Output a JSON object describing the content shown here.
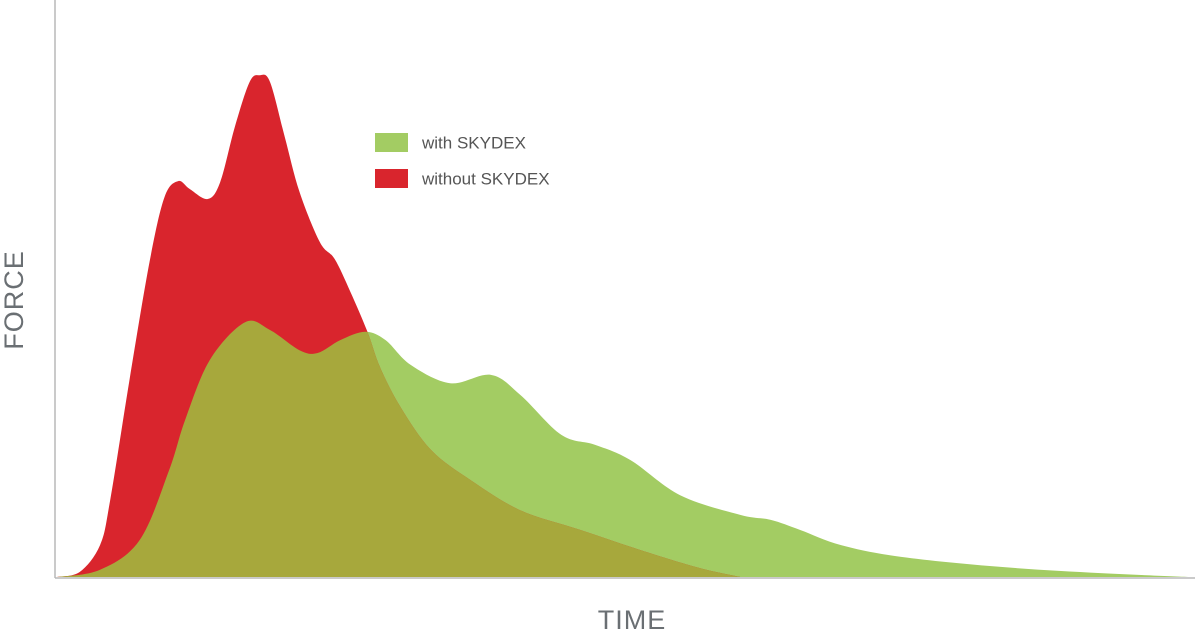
{
  "chart_data": {
    "type": "area",
    "x_label": "TIME",
    "y_label": "FORCE",
    "xlim": [
      0,
      100
    ],
    "ylim": [
      0,
      100
    ],
    "overlap_color": "#a7a83c",
    "series": [
      {
        "name": "with SKYDEX",
        "color": "#a3cc63",
        "x": [
          0,
          3.8,
          7.3,
          9.9,
          11.3,
          13.5,
          16.6,
          18.8,
          21.4,
          23.0,
          25.0,
          27.2,
          29.0,
          31.2,
          34.7,
          38.3,
          40.9,
          44.5,
          47.5,
          50.6,
          55.0,
          60.3,
          63.0,
          65.6,
          69.2,
          74.5,
          83.3,
          92.1,
          100
        ],
        "values": [
          0,
          1.3,
          6.6,
          19.1,
          28.0,
          38.8,
          45.5,
          44.1,
          40.5,
          40.0,
          42.3,
          43.8,
          42.3,
          37.9,
          34.6,
          36.1,
          32.5,
          25.4,
          23.6,
          20.9,
          14.6,
          11.1,
          10.2,
          8.4,
          5.7,
          3.6,
          1.8,
          0.7,
          0
        ]
      },
      {
        "name": "without SKYDEX",
        "color": "#d9252d",
        "x": [
          0,
          2.0,
          3.8,
          4.7,
          6.4,
          8.2,
          9.5,
          10.7,
          11.7,
          13.3,
          14.4,
          15.7,
          17.0,
          17.9,
          18.8,
          20.1,
          21.4,
          23.2,
          24.5,
          25.9,
          27.4,
          28.5,
          30.3,
          33.0,
          36.5,
          40.9,
          46.2,
          51.5,
          56.7,
          60.3
        ],
        "values": [
          0,
          0.9,
          5.7,
          13.8,
          35.2,
          56.6,
          67.9,
          70.7,
          69.3,
          67.5,
          70.5,
          80.4,
          88.4,
          89.6,
          88.4,
          78.6,
          68.8,
          59.8,
          56.8,
          50.9,
          43.8,
          37.5,
          30.4,
          22.7,
          17.3,
          11.9,
          8.4,
          4.8,
          1.6,
          0
        ]
      }
    ]
  }
}
